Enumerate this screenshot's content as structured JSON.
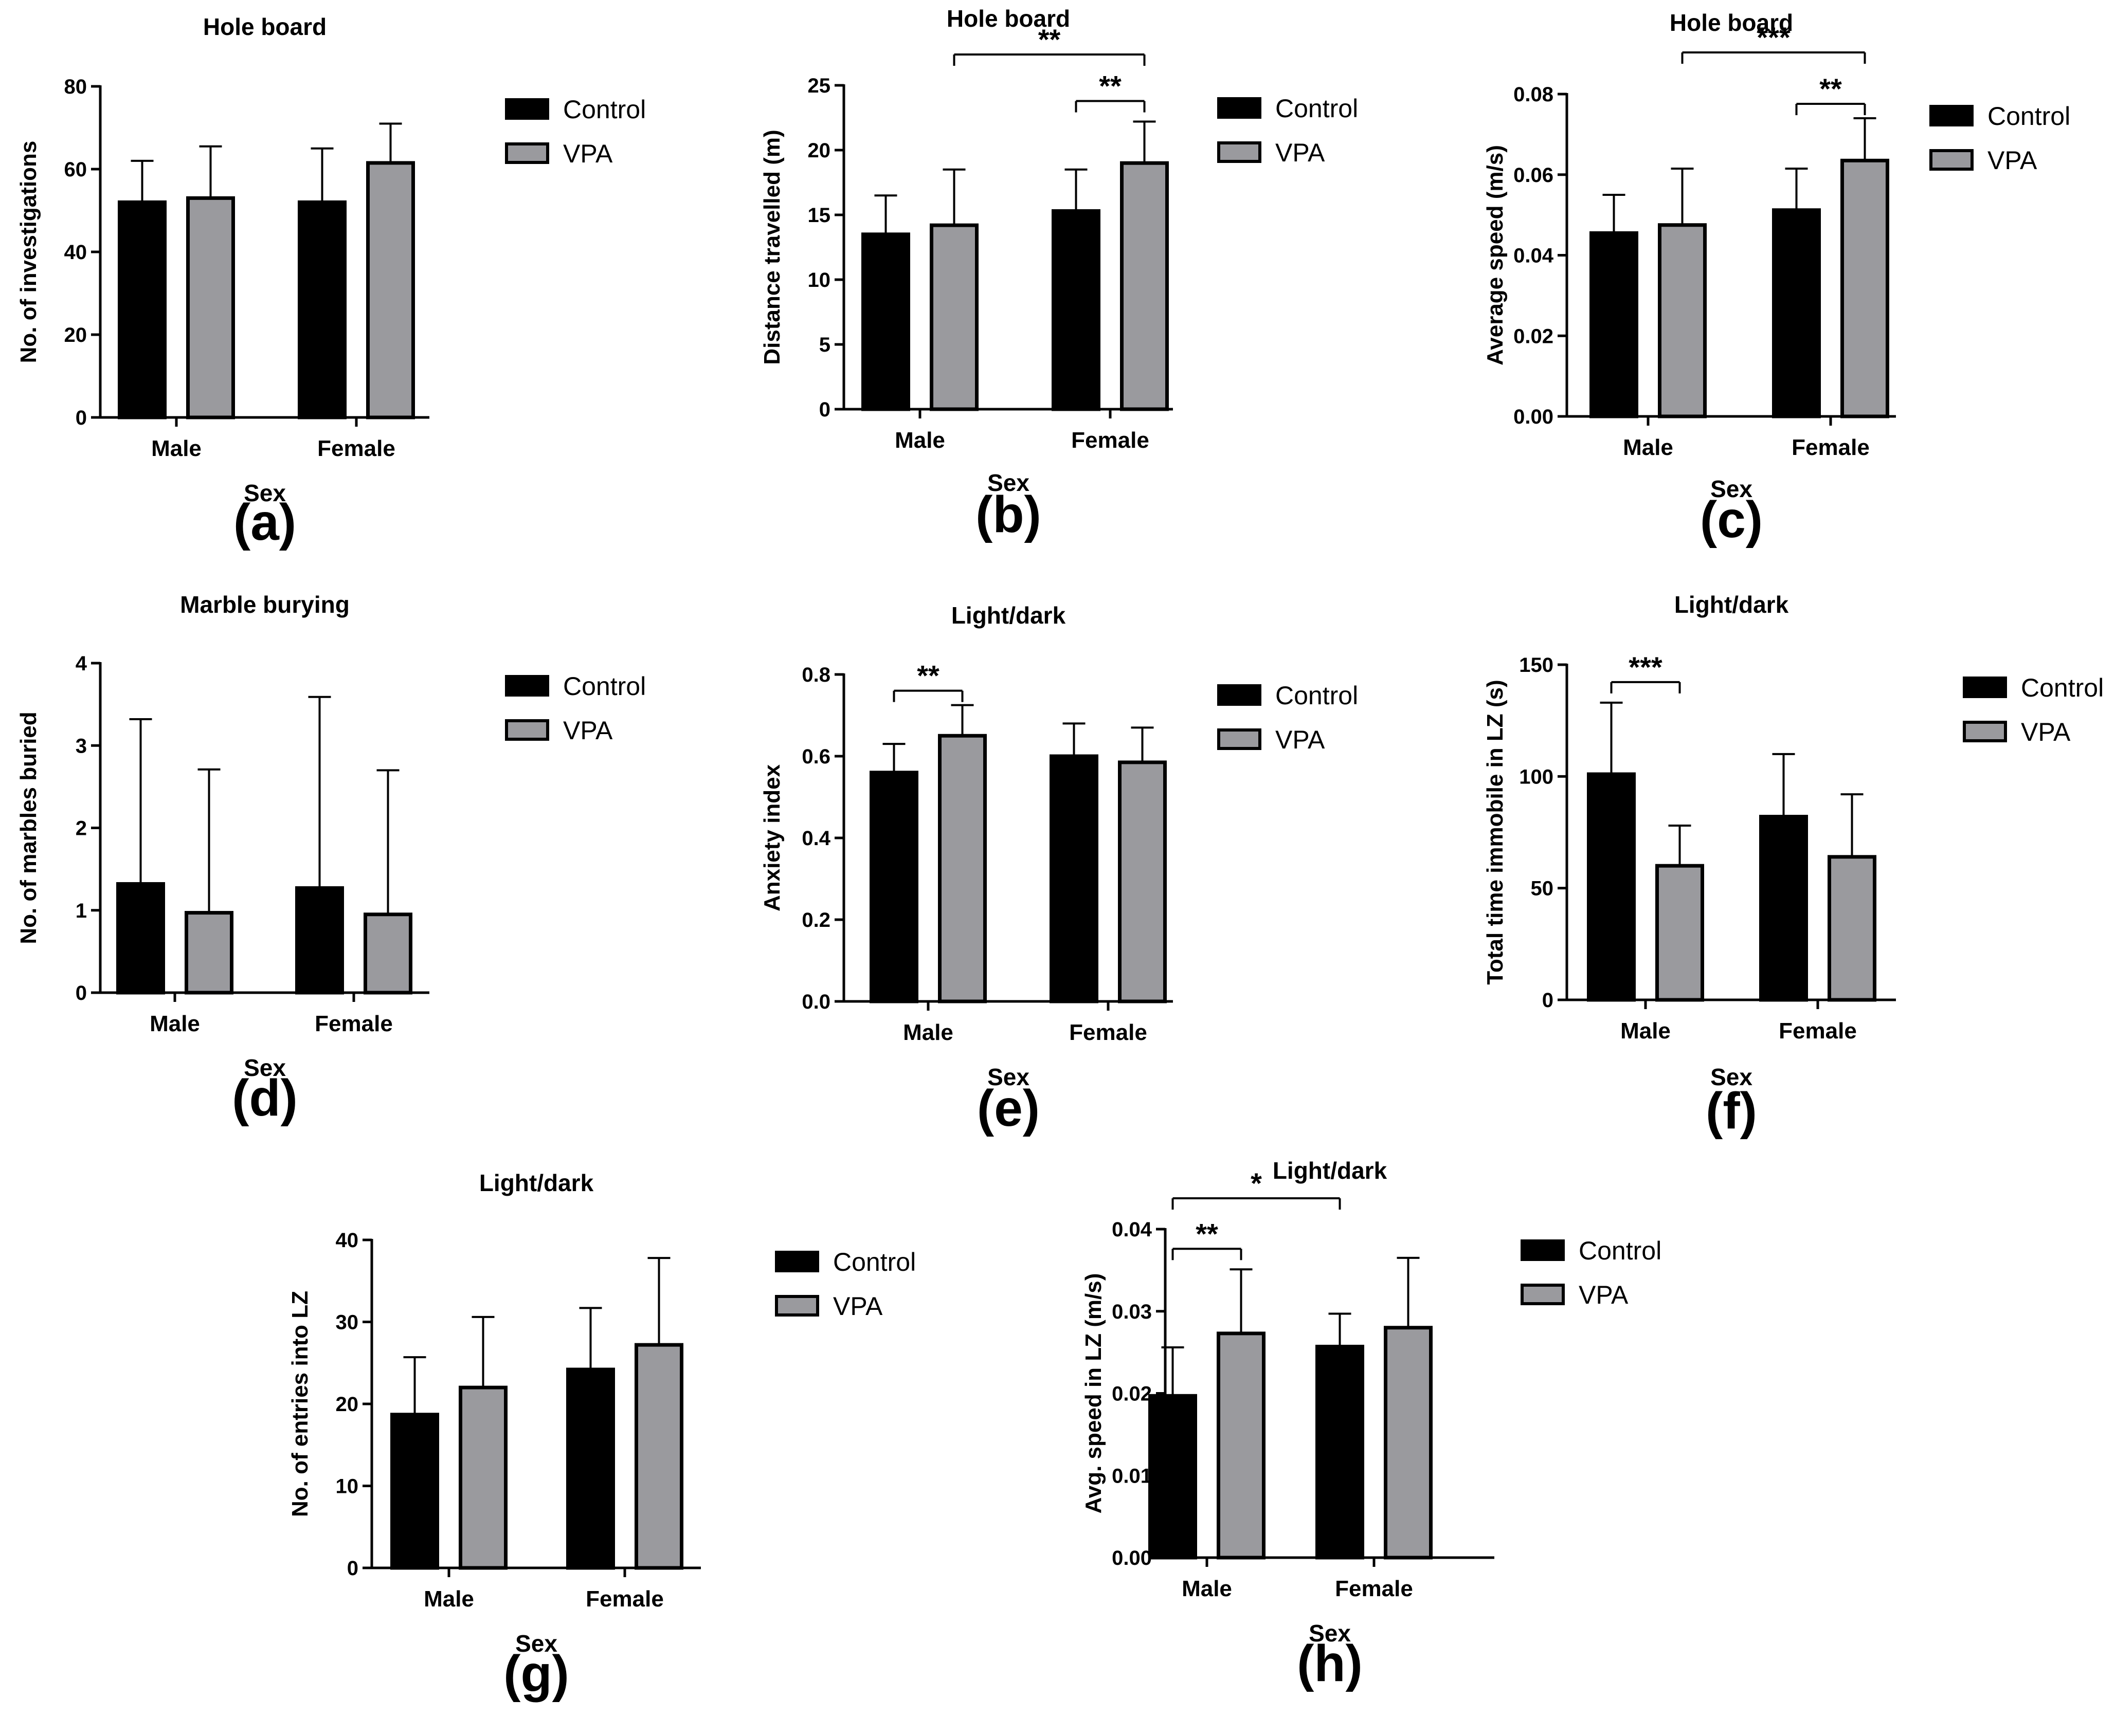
{
  "colors": {
    "control": "#000000",
    "vpa": "#9a9a9e",
    "axis": "#000000"
  },
  "chart_data": [
    {
      "panel": "(a)",
      "type": "bar",
      "title": "Hole board",
      "xlabel": "Sex",
      "ylabel": "No. of investigations",
      "categories": [
        "Male",
        "Female"
      ],
      "ylim": [
        0,
        80
      ],
      "yticks": [
        "0",
        "20",
        "40",
        "60",
        "80"
      ],
      "series": [
        {
          "name": "Control",
          "values": [
            52,
            52
          ],
          "errors": [
            10,
            13
          ]
        },
        {
          "name": "VPA",
          "values": [
            53,
            61.5
          ],
          "errors": [
            12.5,
            9.5
          ]
        }
      ],
      "significance": []
    },
    {
      "panel": "(b)",
      "type": "bar",
      "title": "Hole board",
      "xlabel": "Sex",
      "ylabel": "Distance travelled (m)",
      "categories": [
        "Male",
        "Female"
      ],
      "ylim": [
        0,
        25
      ],
      "yticks": [
        "0",
        "5",
        "10",
        "15",
        "20",
        "25"
      ],
      "series": [
        {
          "name": "Control",
          "values": [
            13.5,
            15.3
          ],
          "errors": [
            3,
            3.2
          ]
        },
        {
          "name": "VPA",
          "values": [
            14.2,
            19
          ],
          "errors": [
            4.3,
            3.2
          ]
        }
      ],
      "significance": [
        {
          "from": "VPA:Male",
          "to": "VPA:Female",
          "label": "**"
        },
        {
          "from": "Control:Female",
          "to": "VPA:Female",
          "label": "**"
        }
      ]
    },
    {
      "panel": "(c)",
      "type": "bar",
      "title": "Hole board",
      "xlabel": "Sex",
      "ylabel": "Average speed (m/s)",
      "categories": [
        "Male",
        "Female"
      ],
      "ylim": [
        0,
        0.08
      ],
      "yticks": [
        "0.00",
        "0.02",
        "0.04",
        "0.06",
        "0.08"
      ],
      "series": [
        {
          "name": "Control",
          "values": [
            0.0455,
            0.0512
          ],
          "errors": [
            0.0095,
            0.0103
          ]
        },
        {
          "name": "VPA",
          "values": [
            0.0475,
            0.0635
          ],
          "errors": [
            0.014,
            0.0105
          ]
        }
      ],
      "significance": [
        {
          "from": "VPA:Male",
          "to": "VPA:Female",
          "label": "***"
        },
        {
          "from": "Control:Female",
          "to": "VPA:Female",
          "label": "**"
        }
      ]
    },
    {
      "panel": "(d)",
      "type": "bar",
      "title": "Marble burying",
      "xlabel": "Sex",
      "ylabel": "No. of marbles buried",
      "categories": [
        "Male",
        "Female"
      ],
      "ylim": [
        0,
        4
      ],
      "yticks": [
        "0",
        "1",
        "2",
        "3",
        "4"
      ],
      "series": [
        {
          "name": "Control",
          "values": [
            1.32,
            1.27
          ],
          "errors": [
            2.0,
            2.32
          ]
        },
        {
          "name": "VPA",
          "values": [
            0.97,
            0.95
          ],
          "errors": [
            1.74,
            1.75
          ]
        }
      ],
      "significance": []
    },
    {
      "panel": "(e)",
      "type": "bar",
      "title": "Light/dark",
      "xlabel": "Sex",
      "ylabel": "Anxiety index",
      "categories": [
        "Male",
        "Female"
      ],
      "ylim": [
        0,
        0.8
      ],
      "yticks": [
        "0.0",
        "0.2",
        "0.4",
        "0.6",
        "0.8"
      ],
      "series": [
        {
          "name": "Control",
          "values": [
            0.56,
            0.6
          ],
          "errors": [
            0.07,
            0.08
          ]
        },
        {
          "name": "VPA",
          "values": [
            0.65,
            0.585
          ],
          "errors": [
            0.075,
            0.085
          ]
        }
      ],
      "significance": [
        {
          "from": "Control:Male",
          "to": "VPA:Male",
          "label": "**"
        }
      ]
    },
    {
      "panel": "(f)",
      "type": "bar",
      "title": "Light/dark",
      "xlabel": "Sex",
      "ylabel": "Total time immobile in LZ (s)",
      "categories": [
        "Male",
        "Female"
      ],
      "ylim": [
        0,
        150
      ],
      "yticks": [
        "0",
        "50",
        "100",
        "150"
      ],
      "series": [
        {
          "name": "Control",
          "values": [
            101,
            82
          ],
          "errors": [
            32,
            28
          ]
        },
        {
          "name": "VPA",
          "values": [
            60,
            64
          ],
          "errors": [
            18,
            28
          ]
        }
      ],
      "significance": [
        {
          "from": "Control:Male",
          "to": "VPA:Male",
          "label": "***"
        }
      ]
    },
    {
      "panel": "(g)",
      "type": "bar",
      "title": "Light/dark",
      "xlabel": "Sex",
      "ylabel": "No. of entries into LZ",
      "categories": [
        "Male",
        "Female"
      ],
      "ylim": [
        0,
        40
      ],
      "yticks": [
        "0",
        "10",
        "20",
        "30",
        "40"
      ],
      "series": [
        {
          "name": "Control",
          "values": [
            18.7,
            24.2
          ],
          "errors": [
            7,
            7.5
          ]
        },
        {
          "name": "VPA",
          "values": [
            22,
            27.2
          ],
          "errors": [
            8.6,
            10.6
          ]
        }
      ],
      "significance": []
    },
    {
      "panel": "(h)",
      "type": "bar",
      "title": "Light/dark",
      "xlabel": "Sex",
      "ylabel": "Avg. speed in LZ (m/s)",
      "categories": [
        "Male",
        "Female"
      ],
      "ylim": [
        0,
        0.04
      ],
      "yticks": [
        "0.00",
        "0.01",
        "0.02",
        "0.03",
        "0.04"
      ],
      "series": [
        {
          "name": "Control",
          "values": [
            0.0197,
            0.0257
          ],
          "errors": [
            0.0059,
            0.004
          ]
        },
        {
          "name": "VPA",
          "values": [
            0.0273,
            0.028
          ],
          "errors": [
            0.0078,
            0.0085
          ]
        }
      ],
      "significance": [
        {
          "from": "Control:Male",
          "to": "VPA:Male",
          "label": "**"
        },
        {
          "from": "Control:Male",
          "to": "Control:Female",
          "label": "*"
        }
      ]
    }
  ]
}
